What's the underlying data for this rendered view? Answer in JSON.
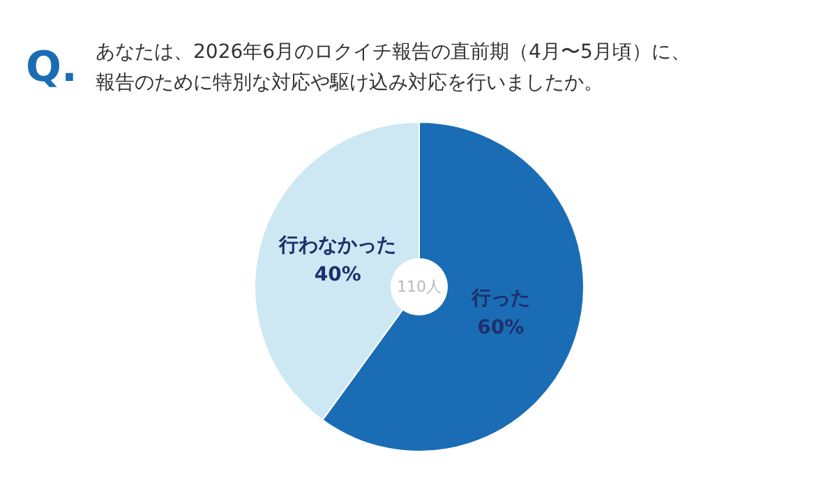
{
  "chart_data": {
    "type": "donut",
    "title": "あなたは、2026年6月のロクイチ報告の直前期（4月〜5月頃）に、報告のために特別な対応や駆け込み対応を行いましたか。",
    "categories": [
      "行った",
      "行わなかった"
    ],
    "values": [
      60,
      40
    ],
    "colors": [
      "#1a6db5",
      "#cde8f2"
    ],
    "value_labels": [
      "60%",
      "40%"
    ],
    "annotations": [
      "Q.",
      "110人"
    ]
  }
}
